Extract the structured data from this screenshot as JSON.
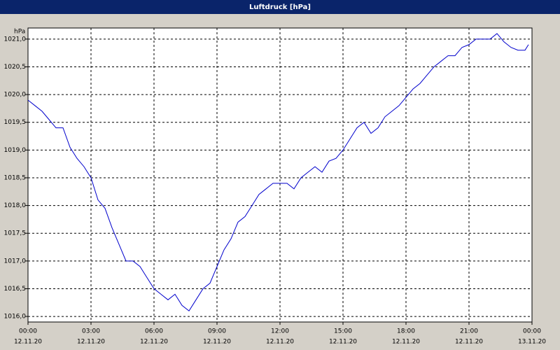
{
  "chart_data": {
    "type": "line",
    "title": "Luftdruck [hPa]",
    "y_label": "hPa",
    "x": [
      0,
      20,
      40,
      60,
      80,
      100,
      120,
      140,
      160,
      180,
      200,
      220,
      240,
      260,
      280,
      300,
      320,
      340,
      360,
      380,
      400,
      420,
      440,
      460,
      480,
      500,
      520,
      540,
      560,
      580,
      600,
      620,
      640,
      660,
      680,
      700,
      720,
      740,
      760,
      780,
      800,
      820,
      840,
      860,
      880,
      900,
      920,
      940,
      960,
      980,
      1000,
      1020,
      1040,
      1060,
      1080,
      1100,
      1120,
      1140,
      1160,
      1180,
      1200,
      1220,
      1240,
      1260,
      1280,
      1300,
      1320,
      1340,
      1360,
      1380,
      1400,
      1420,
      1430
    ],
    "series": [
      {
        "name": "Luftdruck",
        "color": "#0000cc",
        "values": [
          1019.9,
          1019.8,
          1019.7,
          1019.55,
          1019.4,
          1019.4,
          1019.05,
          1018.85,
          1018.7,
          1018.5,
          1018.1,
          1017.95,
          1017.6,
          1017.3,
          1017.0,
          1017.0,
          1016.9,
          1016.7,
          1016.5,
          1016.4,
          1016.3,
          1016.4,
          1016.2,
          1016.1,
          1016.3,
          1016.5,
          1016.6,
          1016.9,
          1017.2,
          1017.4,
          1017.7,
          1017.8,
          1018.0,
          1018.2,
          1018.3,
          1018.4,
          1018.4,
          1018.4,
          1018.3,
          1018.5,
          1018.6,
          1018.7,
          1018.6,
          1018.8,
          1018.85,
          1019.0,
          1019.2,
          1019.4,
          1019.5,
          1019.3,
          1019.4,
          1019.6,
          1019.7,
          1019.8,
          1019.95,
          1020.1,
          1020.2,
          1020.35,
          1020.5,
          1020.6,
          1020.7,
          1020.7,
          1020.85,
          1020.9,
          1021.0,
          1021.0,
          1021.0,
          1021.1,
          1020.95,
          1020.85,
          1020.8,
          1020.8,
          1020.9
        ]
      }
    ],
    "xlim": [
      0,
      1440
    ],
    "xticks": [
      {
        "value": 0,
        "label": "00:00",
        "date": "12.11.20"
      },
      {
        "value": 180,
        "label": "03:00",
        "date": "12.11.20"
      },
      {
        "value": 360,
        "label": "06:00",
        "date": "12.11.20"
      },
      {
        "value": 540,
        "label": "09:00",
        "date": "12.11.20"
      },
      {
        "value": 720,
        "label": "12:00",
        "date": "12.11.20"
      },
      {
        "value": 900,
        "label": "15:00",
        "date": "12.11.20"
      },
      {
        "value": 1080,
        "label": "18:00",
        "date": "12.11.20"
      },
      {
        "value": 1260,
        "label": "21:00",
        "date": "12.11.20"
      },
      {
        "value": 1440,
        "label": "00:00",
        "date": "13.11.20"
      }
    ],
    "ylim": [
      1015.9,
      1021.2
    ],
    "yticks": [
      {
        "value": 1016.0,
        "label": "1016,0"
      },
      {
        "value": 1016.5,
        "label": "1016,5"
      },
      {
        "value": 1017.0,
        "label": "1017,0"
      },
      {
        "value": 1017.5,
        "label": "1017,5"
      },
      {
        "value": 1018.0,
        "label": "1018,0"
      },
      {
        "value": 1018.5,
        "label": "1018,5"
      },
      {
        "value": 1019.0,
        "label": "1019,0"
      },
      {
        "value": 1019.5,
        "label": "1019,5"
      },
      {
        "value": 1020.0,
        "label": "1020,0"
      },
      {
        "value": 1020.5,
        "label": "1020,5"
      },
      {
        "value": 1021.0,
        "label": "1021,0"
      }
    ],
    "grid": true
  }
}
